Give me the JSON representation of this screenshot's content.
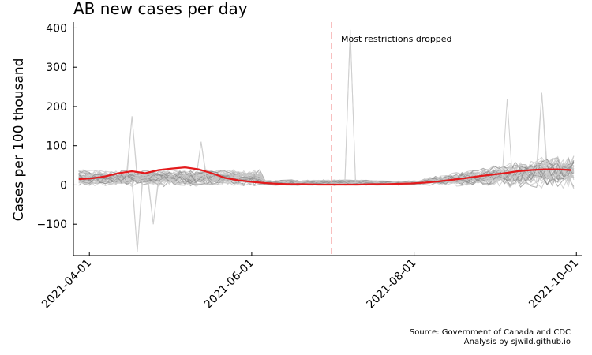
{
  "chart_data": {
    "type": "line",
    "title": "AB new cases per day",
    "ylabel": "Cases per 100 thousand",
    "xlabel": "",
    "x_ticks": [
      "2021-04-01",
      "2021-06-01",
      "2021-08-01",
      "2021-10-01"
    ],
    "y_ticks": [
      -100,
      0,
      100,
      200,
      300,
      400
    ],
    "xlim": [
      "2021-03-26",
      "2021-10-03"
    ],
    "ylim": [
      -180,
      415
    ],
    "grid": false,
    "annotation": {
      "label": "Most restrictions dropped",
      "x": "2021-07-01",
      "color": "#f4a3a3"
    },
    "background_series_color": "#8c8c8c",
    "highlight_color": "#e31a1c",
    "highlight_series": {
      "x": [
        "2021-03-28",
        "2021-04-02",
        "2021-04-07",
        "2021-04-12",
        "2021-04-17",
        "2021-04-22",
        "2021-04-27",
        "2021-05-02",
        "2021-05-07",
        "2021-05-12",
        "2021-05-17",
        "2021-05-22",
        "2021-05-27",
        "2021-06-01",
        "2021-06-06",
        "2021-06-11",
        "2021-06-16",
        "2021-06-21",
        "2021-06-26",
        "2021-07-01",
        "2021-07-06",
        "2021-07-11",
        "2021-07-16",
        "2021-07-21",
        "2021-07-26",
        "2021-07-31",
        "2021-08-05",
        "2021-08-10",
        "2021-08-15",
        "2021-08-20",
        "2021-08-25",
        "2021-08-30",
        "2021-09-04",
        "2021-09-09",
        "2021-09-14",
        "2021-09-19",
        "2021-09-24",
        "2021-09-29"
      ],
      "values": [
        15,
        17,
        22,
        30,
        35,
        30,
        38,
        42,
        45,
        40,
        30,
        18,
        12,
        8,
        5,
        3,
        2,
        2,
        1,
        1,
        1,
        1,
        2,
        2,
        3,
        4,
        6,
        9,
        13,
        17,
        22,
        26,
        30,
        35,
        38,
        40,
        40,
        38
      ]
    },
    "spikes": [
      {
        "x": "2021-04-17",
        "value": 175
      },
      {
        "x": "2021-04-19",
        "value": -170
      },
      {
        "x": "2021-04-25",
        "value": -100
      },
      {
        "x": "2021-05-13",
        "value": 110
      },
      {
        "x": "2021-07-08",
        "value": 395
      },
      {
        "x": "2021-09-18",
        "value": 235
      },
      {
        "x": "2021-09-05",
        "value": 220
      }
    ],
    "source_lines": [
      "Source: Government of Canada and CDC",
      "Analysis by sjwild.github.io"
    ]
  }
}
